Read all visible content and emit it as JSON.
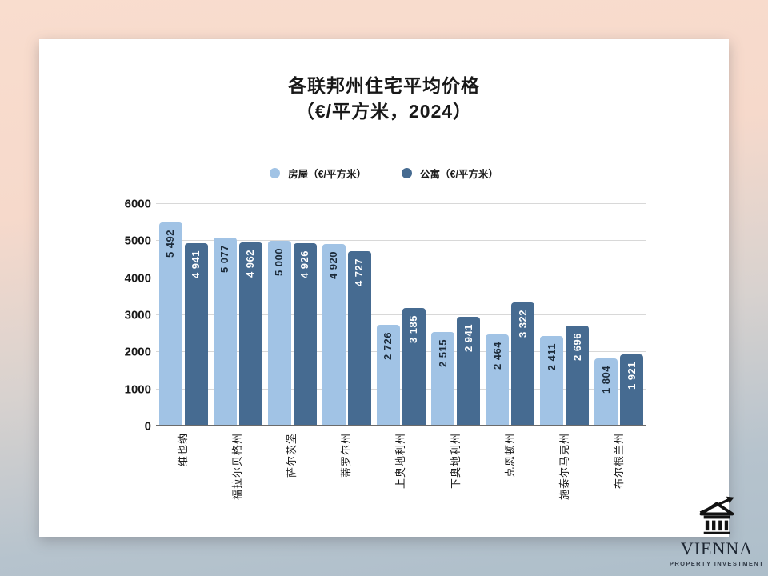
{
  "page": {
    "background_top_color": "#f9ddce",
    "background_bottom_color": "#adbeca",
    "card_color": "#ffffff"
  },
  "chart_data": {
    "type": "bar",
    "title": "各联邦州住宅平均价格",
    "subtitle": "（€/平方米，2024）",
    "categories": [
      "维也纳",
      "福拉尔贝格州",
      "萨尔茨堡",
      "蒂罗尔州",
      "上奥地利州",
      "下奥地利州",
      "克恩顿州",
      "施泰尔马克州",
      "布尔根兰州"
    ],
    "series": [
      {
        "key": "house",
        "name": "房屋（€/平方米）",
        "color": "#a1c3e5",
        "label_color": "#1c2b3a",
        "values": [
          5492,
          5077,
          5000,
          4920,
          2726,
          2515,
          2464,
          2411,
          1804
        ]
      },
      {
        "key": "apartment",
        "name": "公寓（€/平方米）",
        "color": "#466b91",
        "label_color": "#ffffff",
        "values": [
          4941,
          4962,
          4926,
          4727,
          3185,
          2941,
          3322,
          2696,
          1921
        ]
      }
    ],
    "y_ticks": [
      0,
      1000,
      2000,
      3000,
      4000,
      5000,
      6000
    ],
    "ylim": [
      0,
      6000
    ],
    "grid": true,
    "legend_position": "top-center",
    "value_label_format": "space-thousands",
    "value_label_orientation": "vertical-bottom-up",
    "category_label_orientation": "vertical-bottom-up"
  },
  "logo": {
    "title": "VIENNA",
    "subtitle": "PROPERTY INVESTMENT",
    "icon": "classical-building-with-growth-arrow"
  }
}
